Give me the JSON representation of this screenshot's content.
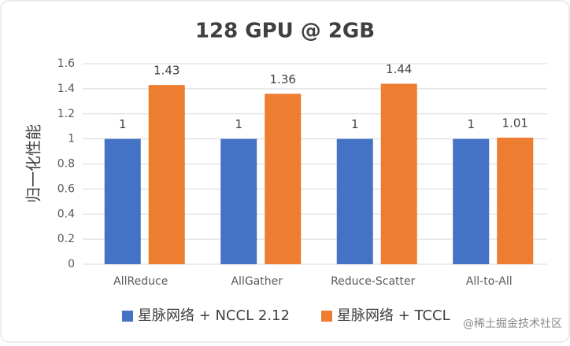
{
  "chart_data": {
    "type": "bar",
    "title": "128 GPU @ 2GB",
    "y_label": "归一化性能",
    "categories": [
      "AllReduce",
      "AllGather",
      "Reduce-Scatter",
      "All-to-All"
    ],
    "series": [
      {
        "name": "星脉网络 + NCCL 2.12",
        "color": "#4472c4",
        "values": [
          1,
          1,
          1,
          1
        ]
      },
      {
        "name": "星脉网络 + TCCL",
        "color": "#ed7d31",
        "values": [
          1.43,
          1.36,
          1.44,
          1.01
        ]
      }
    ],
    "ylim": [
      0,
      1.6
    ],
    "yticks": [
      0,
      0.2,
      0.4,
      0.6,
      0.8,
      1,
      1.2,
      1.4,
      1.6
    ],
    "grid": true,
    "legend": "bottom",
    "watermark": "@稀土掘金技术社区"
  }
}
